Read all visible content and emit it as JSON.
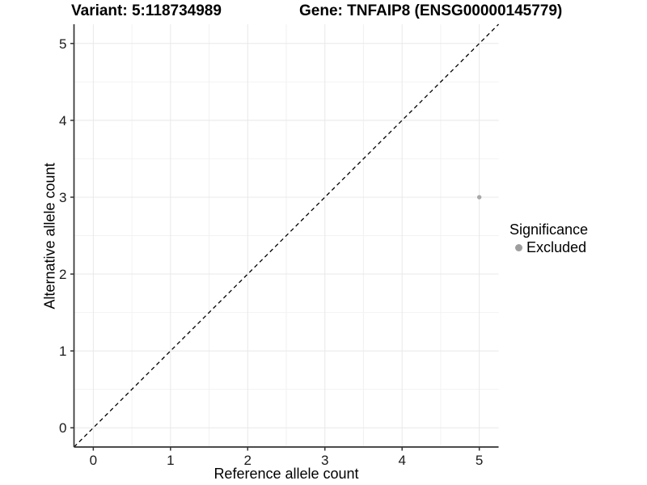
{
  "chart_data": {
    "type": "scatter",
    "titles": {
      "left": "Variant: 5:118734989",
      "right": "Gene: TNFAIP8 (ENSG00000145779)"
    },
    "xlabel": "Reference allele count",
    "ylabel": "Alternative allele count",
    "xlim": [
      -0.25,
      5.25
    ],
    "ylim": [
      -0.25,
      5.25
    ],
    "xticks": [
      0,
      1,
      2,
      3,
      4,
      5
    ],
    "yticks": [
      0,
      1,
      2,
      3,
      4,
      5
    ],
    "minor_ticks": [
      0.5,
      1.5,
      2.5,
      3.5,
      4.5
    ],
    "grid": "major+minor",
    "identity_line": {
      "style": "dashed",
      "x1": -0.25,
      "y1": -0.25,
      "x2": 5.25,
      "y2": 5.25,
      "color": "#000000"
    },
    "series": [
      {
        "name": "Excluded",
        "color": "#a9a9a9",
        "points": [
          {
            "x": 5,
            "y": 3
          }
        ]
      }
    ],
    "legend": {
      "title": "Significance",
      "position": "right",
      "items": [
        {
          "label": "Excluded",
          "color": "#9e9e9e",
          "marker": "circle"
        }
      ]
    },
    "colors": {
      "grid_major": "#e8e8e8",
      "grid_minor": "#f2f2f2",
      "axis_line": "#333333",
      "tick_text": "#1a1a1a",
      "background": "#ffffff"
    }
  }
}
